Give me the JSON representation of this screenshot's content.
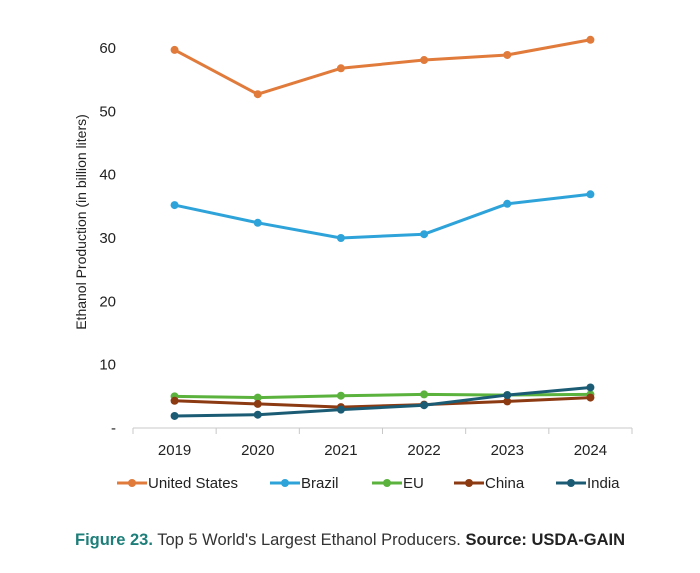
{
  "chart_data": {
    "type": "line",
    "title": "",
    "xlabel": "",
    "ylabel": "Ethanol Production (in billion liters)",
    "categories": [
      "2019",
      "2020",
      "2021",
      "2022",
      "2023",
      "2024"
    ],
    "ylim": [
      0,
      60
    ],
    "yticks": [
      0,
      10,
      20,
      30,
      40,
      50,
      60
    ],
    "ytick_labels": [
      "-",
      "10",
      "20",
      "30",
      "40",
      "50",
      "60"
    ],
    "grid": false,
    "legend_position": "bottom",
    "series": [
      {
        "name": "United States",
        "color": "#e07b3c",
        "values": [
          59.7,
          52.7,
          56.8,
          58.1,
          58.9,
          61.3
        ]
      },
      {
        "name": "Brazil",
        "color": "#2ea3da",
        "values": [
          35.2,
          32.4,
          30.0,
          30.6,
          35.4,
          36.9
        ]
      },
      {
        "name": "EU",
        "color": "#5bb33e",
        "values": [
          5.0,
          4.8,
          5.1,
          5.3,
          5.2,
          5.3
        ]
      },
      {
        "name": "China",
        "color": "#8c3a12",
        "values": [
          4.3,
          3.8,
          3.3,
          3.7,
          4.2,
          4.8
        ]
      },
      {
        "name": "India",
        "color": "#1b5c74",
        "values": [
          1.9,
          2.1,
          2.9,
          3.6,
          5.2,
          6.4
        ]
      }
    ]
  },
  "caption": {
    "figure_label": "Figure 23.",
    "text": " Top 5 World's Largest Ethanol Producers. ",
    "source": "Source: USDA-GAIN"
  }
}
